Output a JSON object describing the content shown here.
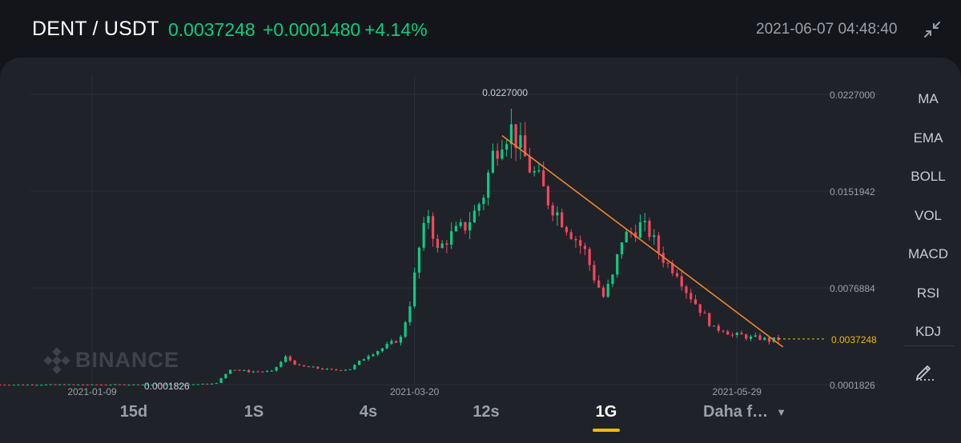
{
  "header": {
    "pair": "DENT / USDT",
    "price": "0.0037248",
    "change": "+0.0001480",
    "change_pct": "+4.14%",
    "timestamp": "2021-06-07 04:48:40",
    "collapse_icon": "collapse-arrows-icon"
  },
  "watermark": {
    "text": "BINANCE",
    "icon": "binance-logo-icon"
  },
  "timeframes": [
    {
      "label": "15d",
      "active": false
    },
    {
      "label": "1S",
      "active": false
    },
    {
      "label": "4s",
      "active": false
    },
    {
      "label": "12s",
      "active": false
    },
    {
      "label": "1G",
      "active": true
    },
    {
      "label": "Daha f…",
      "active": false,
      "dropdown": true
    }
  ],
  "indicators": [
    "MA",
    "EMA",
    "BOLL",
    "VOL",
    "MACD",
    "RSI",
    "KDJ"
  ],
  "draw_tool_icon": "pencil-draw-icon",
  "colors": {
    "up": "#0ecb81",
    "down": "#f6465d",
    "trendline": "#f0852d",
    "current_price": "#f0b90b",
    "accent": "#f0b90b"
  },
  "chart_data": {
    "type": "candlestick",
    "y_tick_labels": [
      "0.0227000",
      "0.0151942",
      "0.0076884",
      "0.0001826"
    ],
    "ylim": [
      0.0001826,
      0.0227
    ],
    "x_tick_labels": [
      "2021-01-09",
      "2021-03-20",
      "2021-05-29"
    ],
    "xlim": [
      "2020-12-20",
      "2021-06-07"
    ],
    "current_price": "0.0037248",
    "high_marker": "0.0227000",
    "low_marker": "0.0001826",
    "daily_close": [
      [
        "2020-12-20",
        0.00018
      ],
      [
        "2020-12-27",
        0.00018
      ],
      [
        "2021-01-03",
        0.00019
      ],
      [
        "2021-01-09",
        0.00018
      ],
      [
        "2021-01-16",
        0.00019
      ],
      [
        "2021-01-23",
        0.00019
      ],
      [
        "2021-01-30",
        0.0002
      ],
      [
        "2021-02-05",
        0.0003
      ],
      [
        "2021-02-08",
        0.0014
      ],
      [
        "2021-02-12",
        0.0012
      ],
      [
        "2021-02-17",
        0.0012
      ],
      [
        "2021-02-20",
        0.0023
      ],
      [
        "2021-02-23",
        0.0016
      ],
      [
        "2021-02-26",
        0.0015
      ],
      [
        "2021-03-02",
        0.0013
      ],
      [
        "2021-03-06",
        0.0014
      ],
      [
        "2021-03-10",
        0.0025
      ],
      [
        "2021-03-13",
        0.003
      ],
      [
        "2021-03-17",
        0.0038
      ],
      [
        "2021-03-19",
        0.0065
      ],
      [
        "2021-03-21",
        0.0107
      ],
      [
        "2021-03-23",
        0.0135
      ],
      [
        "2021-03-25",
        0.0105
      ],
      [
        "2021-03-27",
        0.0115
      ],
      [
        "2021-03-29",
        0.012
      ],
      [
        "2021-03-31",
        0.0125
      ],
      [
        "2021-04-02",
        0.0135
      ],
      [
        "2021-04-04",
        0.015
      ],
      [
        "2021-04-06",
        0.018
      ],
      [
        "2021-04-08",
        0.0195
      ],
      [
        "2021-04-10",
        0.02
      ],
      [
        "2021-04-12",
        0.0185
      ],
      [
        "2021-04-14",
        0.017
      ],
      [
        "2021-04-16",
        0.016
      ],
      [
        "2021-04-18",
        0.0145
      ],
      [
        "2021-04-20",
        0.0135
      ],
      [
        "2021-04-22",
        0.0125
      ],
      [
        "2021-04-24",
        0.0115
      ],
      [
        "2021-04-26",
        0.0105
      ],
      [
        "2021-04-28",
        0.0085
      ],
      [
        "2021-04-30",
        0.007
      ],
      [
        "2021-05-02",
        0.0085
      ],
      [
        "2021-05-04",
        0.0115
      ],
      [
        "2021-05-06",
        0.012
      ],
      [
        "2021-05-08",
        0.0125
      ],
      [
        "2021-05-10",
        0.012
      ],
      [
        "2021-05-12",
        0.0105
      ],
      [
        "2021-05-14",
        0.0095
      ],
      [
        "2021-05-16",
        0.009
      ],
      [
        "2021-05-18",
        0.0075
      ],
      [
        "2021-05-20",
        0.0065
      ],
      [
        "2021-05-22",
        0.0055
      ],
      [
        "2021-05-24",
        0.0045
      ],
      [
        "2021-05-26",
        0.0045
      ],
      [
        "2021-05-28",
        0.004
      ],
      [
        "2021-05-30",
        0.004
      ],
      [
        "2021-06-01",
        0.0038
      ],
      [
        "2021-06-03",
        0.0038
      ],
      [
        "2021-06-05",
        0.0036
      ],
      [
        "2021-06-07",
        0.0037248
      ]
    ],
    "trendline": [
      [
        "2021-04-08",
        0.0195
      ],
      [
        "2021-06-08",
        0.0031
      ]
    ],
    "grid": true
  }
}
